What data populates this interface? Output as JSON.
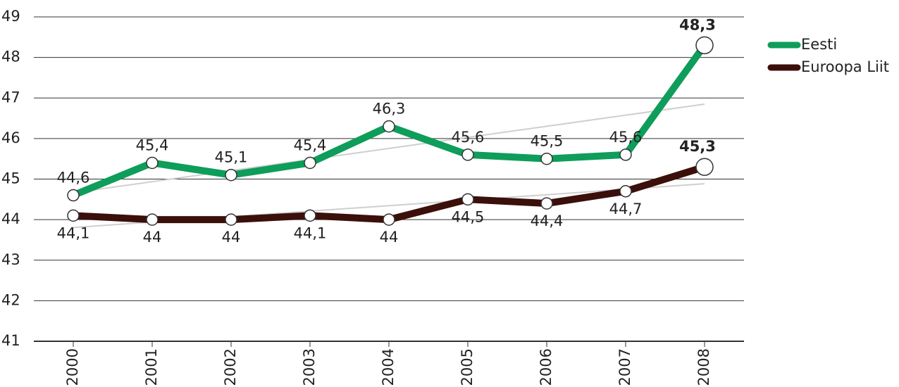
{
  "chart_data": {
    "type": "line",
    "categories": [
      "2000",
      "2001",
      "2002",
      "2003",
      "2004",
      "2005",
      "2006",
      "2007",
      "2008"
    ],
    "series": [
      {
        "name": "Eesti",
        "color": "#0e9d5a",
        "values": [
          44.6,
          45.4,
          45.1,
          45.4,
          46.3,
          45.6,
          45.5,
          45.6,
          48.3
        ],
        "value_labels": [
          "44,6",
          "45,4",
          "45,1",
          "45,4",
          "46,3",
          "45,6",
          "45,5",
          "45,6",
          "48,3"
        ]
      },
      {
        "name": "Euroopa Liit",
        "color": "#3b0f0a",
        "values": [
          44.1,
          44,
          44,
          44.1,
          44,
          44.5,
          44.4,
          44.7,
          45.3
        ],
        "value_labels": [
          "44,1",
          "44",
          "44",
          "44,1",
          "44",
          "44,5",
          "44,4",
          "44,7",
          "45,3"
        ]
      }
    ],
    "ylim": [
      41,
      49
    ],
    "yticks": [
      41,
      42,
      43,
      44,
      45,
      46,
      47,
      48,
      49
    ],
    "grid": true,
    "trendline": true,
    "legend": "right"
  }
}
